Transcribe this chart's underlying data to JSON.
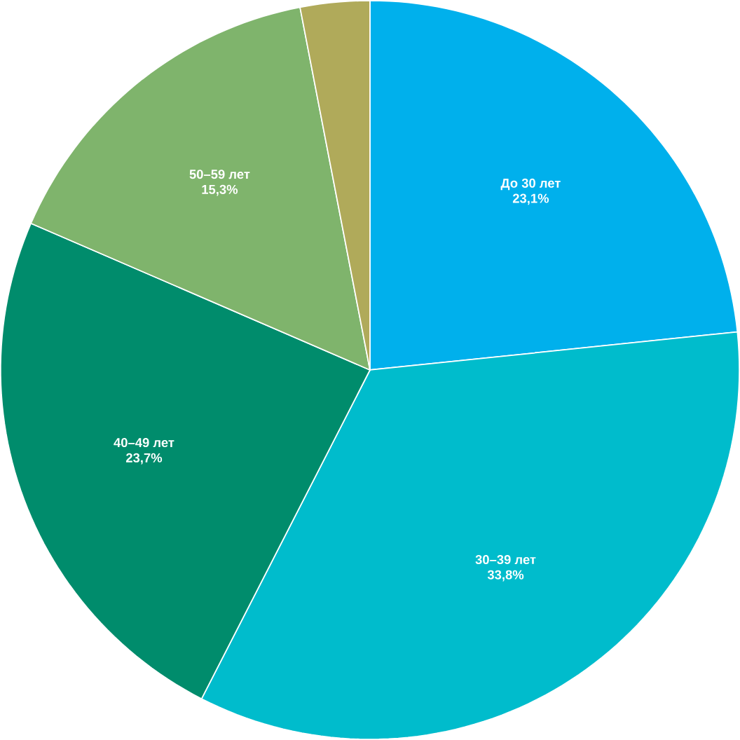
{
  "chart_data": {
    "type": "pie",
    "categories": [
      "До 30 лет",
      "30–39 лет",
      "40–49 лет",
      "50–59 лет",
      null
    ],
    "values": [
      23.1,
      33.8,
      23.7,
      15.3,
      3.0
    ],
    "value_labels": [
      "23,1%",
      "33,8%",
      "23,7%",
      "15,3%",
      null
    ],
    "colors": [
      "#00b0ec",
      "#00bccc",
      "#008c6c",
      "#7fb46c",
      "#b0aa5a"
    ]
  }
}
